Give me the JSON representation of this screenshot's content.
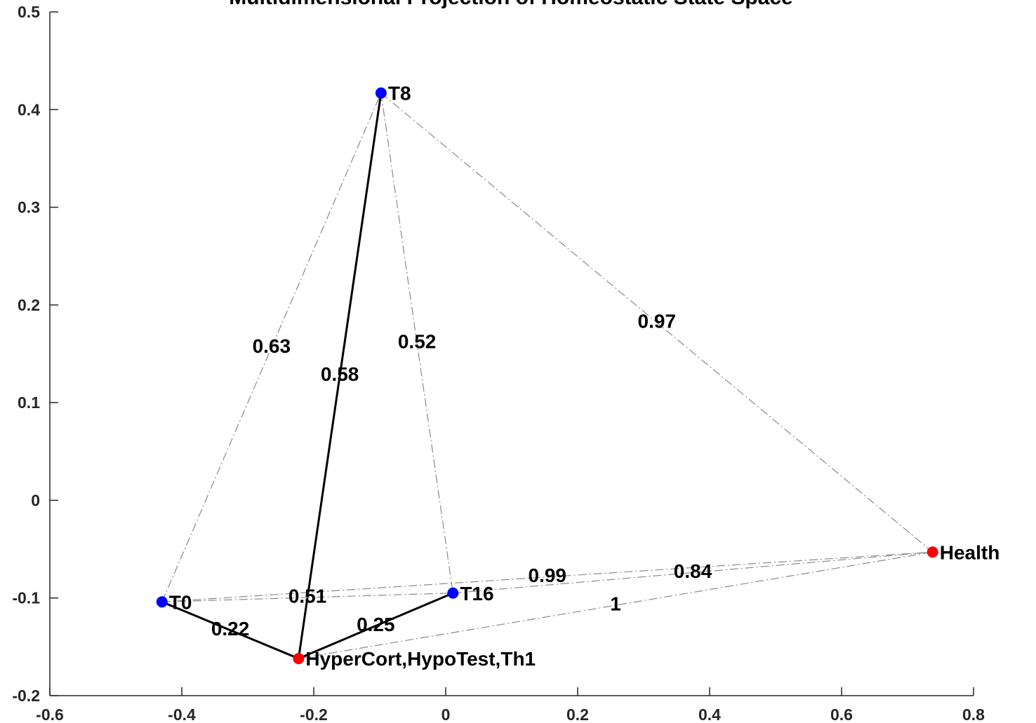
{
  "chart_data": {
    "type": "scatter",
    "title": "Multidimensional Projection of Homeostatic State Space",
    "xlabel": "",
    "ylabel": "",
    "xlim": [
      -0.6,
      0.8
    ],
    "ylim": [
      -0.2,
      0.5
    ],
    "xticks": [
      "-0.6",
      "-0.4",
      "-0.2",
      "0",
      "0.2",
      "0.4",
      "0.6",
      "0.8"
    ],
    "yticks": [
      "-0.2",
      "-0.1",
      "0",
      "0.1",
      "0.2",
      "0.3",
      "0.4",
      "0.5"
    ],
    "grid": false,
    "points": [
      {
        "label": "T0",
        "x": -0.43,
        "y": -0.104,
        "color": "#0000ff"
      },
      {
        "label": "T8",
        "x": -0.098,
        "y": 0.417,
        "color": "#0000ff"
      },
      {
        "label": "T16",
        "x": 0.011,
        "y": -0.095,
        "color": "#0000ff"
      },
      {
        "label": "HyperCort,HypoTest,Th1",
        "x": -0.223,
        "y": -0.162,
        "color": "#ff0000"
      },
      {
        "label": "Health",
        "x": 0.738,
        "y": -0.053,
        "color": "#ff0000"
      }
    ],
    "edges": [
      {
        "from": "T0",
        "to": "HyperCort,HypoTest,Th1",
        "value": "0.22",
        "style": "solid"
      },
      {
        "from": "T8",
        "to": "HyperCort,HypoTest,Th1",
        "value": "0.58",
        "style": "solid"
      },
      {
        "from": "T16",
        "to": "HyperCort,HypoTest,Th1",
        "value": "0.25",
        "style": "solid"
      },
      {
        "from": "T0",
        "to": "T8",
        "value": "0.63",
        "style": "dashdot"
      },
      {
        "from": "T8",
        "to": "T16",
        "value": "0.52",
        "style": "dashdot"
      },
      {
        "from": "T8",
        "to": "Health",
        "value": "0.97",
        "style": "dashdot"
      },
      {
        "from": "T0",
        "to": "T16",
        "value": "0.51",
        "style": "dashdot"
      },
      {
        "from": "T0",
        "to": "Health",
        "value": "0.99",
        "style": "dashdot"
      },
      {
        "from": "T16",
        "to": "Health",
        "value": "0.84",
        "style": "dashdot"
      },
      {
        "from": "HyperCort,HypoTest,Th1",
        "to": "Health",
        "value": "1",
        "style": "dashdot"
      }
    ]
  }
}
